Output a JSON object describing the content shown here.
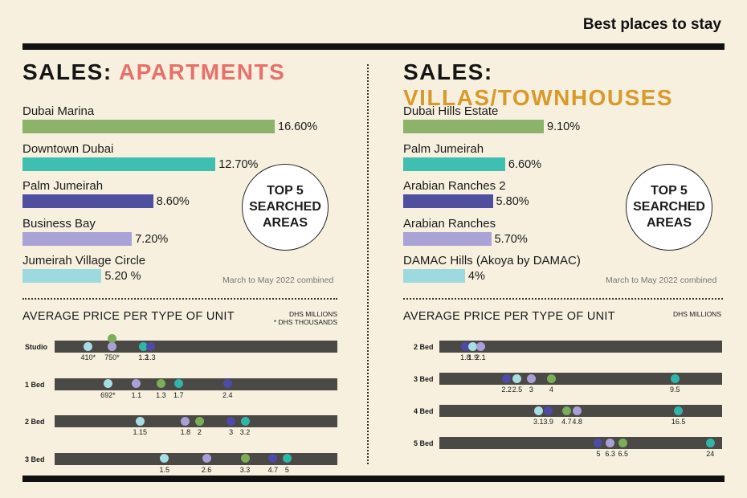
{
  "header": {
    "brand": "Best places to stay"
  },
  "left": {
    "title_prefix": "SALES: ",
    "title_highlight": "APARTMENTS",
    "badge": "TOP 5\nSEARCHED\nAREAS",
    "note": "March to May 2022 combined",
    "avg_title": "AVERAGE PRICE PER TYPE OF UNIT",
    "units_line1": "DHS MILLIONS",
    "units_line2": "* DHS THOUSANDS"
  },
  "right": {
    "title_prefix": "SALES: ",
    "title_highlight": "VILLAS/TOWNHOUSES",
    "badge": "TOP 5\nSEARCHED\nAREAS",
    "note": "March to May 2022 combined",
    "avg_title": "AVERAGE PRICE PER TYPE OF UNIT",
    "units_line1": "DHS MILLIONS"
  },
  "colors": {
    "green": "#8db36a",
    "teal": "#3fbfb0",
    "indigo": "#4f4fa0",
    "lavender": "#a9a3d6",
    "lightblue": "#9fd9e0",
    "dot_green": "#7dad5a",
    "dot_teal": "#2fb6a8",
    "dot_indigo": "#4d4aa8",
    "dot_lavender": "#aaa0d8",
    "dot_lightblue": "#a8dde4"
  },
  "chart_data": [
    {
      "type": "bar",
      "title": "SALES: APARTMENTS",
      "subtitle": "TOP 5 SEARCHED AREAS",
      "categories": [
        "Dubai Marina",
        "Downtown Dubai",
        "Palm Jumeirah",
        "Business Bay",
        "Jumeirah Village Circle"
      ],
      "values": [
        16.6,
        12.7,
        8.6,
        7.2,
        5.2
      ],
      "value_labels": [
        "16.60%",
        "12.70%",
        "8.60%",
        "7.20%",
        "5.20 %"
      ],
      "colors": [
        "green",
        "teal",
        "indigo",
        "lavender",
        "lightblue"
      ],
      "xlim": [
        0,
        16.6
      ]
    },
    {
      "type": "bar",
      "title": "SALES: VILLAS/TOWNHOUSES",
      "subtitle": "TOP 5 SEARCHED AREAS",
      "categories": [
        "Dubai Hills Estate",
        "Palm Jumeirah",
        "Arabian Ranches 2",
        "Arabian Ranches",
        "DAMAC Hills (Akoya by DAMAC)"
      ],
      "values": [
        9.1,
        6.6,
        5.8,
        5.7,
        4
      ],
      "value_labels": [
        "9.10%",
        "6.60%",
        "5.80%",
        "5.70%",
        "4%"
      ],
      "colors": [
        "green",
        "teal",
        "indigo",
        "lavender",
        "lightblue"
      ],
      "xlim": [
        0,
        9.1
      ]
    },
    {
      "type": "scatter",
      "title": "AVERAGE PRICE PER TYPE OF UNIT (Apartments)",
      "xlabel": "DHS MILLIONS / * DHS THOUSANDS",
      "rows": [
        {
          "label": "Studio",
          "points": [
            {
              "label": "410*",
              "pos": 0.41,
              "color": "dot_lightblue",
              "above": false
            },
            {
              "label": "750*",
              "pos": 0.75,
              "color": "dot_lavender",
              "above": false
            },
            {
              "label": "",
              "pos": 0.75,
              "color": "dot_green",
              "above": true
            },
            {
              "label": "1.2",
              "pos": 1.2,
              "color": "dot_teal",
              "above": false
            },
            {
              "label": "1.3",
              "pos": 1.3,
              "color": "dot_indigo",
              "above": false
            }
          ]
        },
        {
          "label": "1 Bed",
          "points": [
            {
              "label": "692*",
              "pos": 0.692,
              "color": "dot_lightblue",
              "above": false
            },
            {
              "label": "1.1",
              "pos": 1.1,
              "color": "dot_lavender",
              "above": false
            },
            {
              "label": "1.3",
              "pos": 1.45,
              "color": "dot_green",
              "above": false
            },
            {
              "label": "1.7",
              "pos": 1.7,
              "color": "dot_teal",
              "above": false
            },
            {
              "label": "2.4",
              "pos": 2.4,
              "color": "dot_indigo",
              "above": false
            }
          ]
        },
        {
          "label": "2 Bed",
          "points": [
            {
              "label": "1.15",
              "pos": 1.15,
              "color": "dot_lightblue",
              "above": false
            },
            {
              "label": "1.8",
              "pos": 1.8,
              "color": "dot_lavender",
              "above": false
            },
            {
              "label": "2",
              "pos": 2.0,
              "color": "dot_green",
              "above": false
            },
            {
              "label": "3",
              "pos": 2.45,
              "color": "dot_indigo",
              "above": false
            },
            {
              "label": "3.2",
              "pos": 2.65,
              "color": "dot_teal",
              "above": false
            }
          ]
        },
        {
          "label": "3 Bed",
          "points": [
            {
              "label": "1.5",
              "pos": 1.5,
              "color": "dot_lightblue",
              "above": false
            },
            {
              "label": "2.6",
              "pos": 2.1,
              "color": "dot_lavender",
              "above": false
            },
            {
              "label": "3.3",
              "pos": 2.65,
              "color": "dot_green",
              "above": false
            },
            {
              "label": "4.7",
              "pos": 3.05,
              "color": "dot_indigo",
              "above": false
            },
            {
              "label": "5",
              "pos": 3.25,
              "color": "dot_teal",
              "above": false
            }
          ]
        }
      ],
      "xlim": [
        0,
        3.9
      ]
    },
    {
      "type": "scatter",
      "title": "AVERAGE PRICE PER TYPE OF UNIT (Villas/Townhouses)",
      "xlabel": "DHS MILLIONS",
      "rows": [
        {
          "label": "2 Bed",
          "points": [
            {
              "label": "1.8",
              "pos": 1.8,
              "color": "dot_indigo",
              "above": false
            },
            {
              "label": "1.9",
              "pos": 2.45,
              "color": "dot_lightblue",
              "above": false
            },
            {
              "label": "2.1",
              "pos": 3.1,
              "color": "dot_lavender",
              "above": false
            }
          ]
        },
        {
          "label": "3 Bed",
          "points": [
            {
              "label": "2.2",
              "pos": 5.3,
              "color": "dot_indigo",
              "above": false
            },
            {
              "label": "2.5",
              "pos": 6.2,
              "color": "dot_lightblue",
              "above": false
            },
            {
              "label": "3",
              "pos": 7.4,
              "color": "dot_lavender",
              "above": false
            },
            {
              "label": "4",
              "pos": 9.1,
              "color": "dot_green",
              "above": false
            },
            {
              "label": "9.5",
              "pos": 19.6,
              "color": "dot_teal",
              "above": false
            }
          ]
        },
        {
          "label": "4 Bed",
          "points": [
            {
              "label": "3.1",
              "pos": 8.0,
              "color": "dot_lightblue",
              "above": false
            },
            {
              "label": "3.9",
              "pos": 8.85,
              "color": "dot_indigo",
              "above": false
            },
            {
              "label": "4.7",
              "pos": 10.4,
              "color": "dot_green",
              "above": false
            },
            {
              "label": "4.8",
              "pos": 11.3,
              "color": "dot_lavender",
              "above": false
            },
            {
              "label": "16.5",
              "pos": 19.9,
              "color": "dot_teal",
              "above": false
            }
          ]
        },
        {
          "label": "5 Bed",
          "points": [
            {
              "label": "5",
              "pos": 13.1,
              "color": "dot_indigo",
              "above": false
            },
            {
              "label": "6.3",
              "pos": 14.1,
              "color": "dot_lavender",
              "above": false
            },
            {
              "label": "6.5",
              "pos": 15.2,
              "color": "dot_green",
              "above": false
            },
            {
              "label": "24",
              "pos": 22.6,
              "color": "dot_teal",
              "above": false
            }
          ]
        }
      ],
      "xlim": [
        0,
        23.2
      ]
    }
  ]
}
